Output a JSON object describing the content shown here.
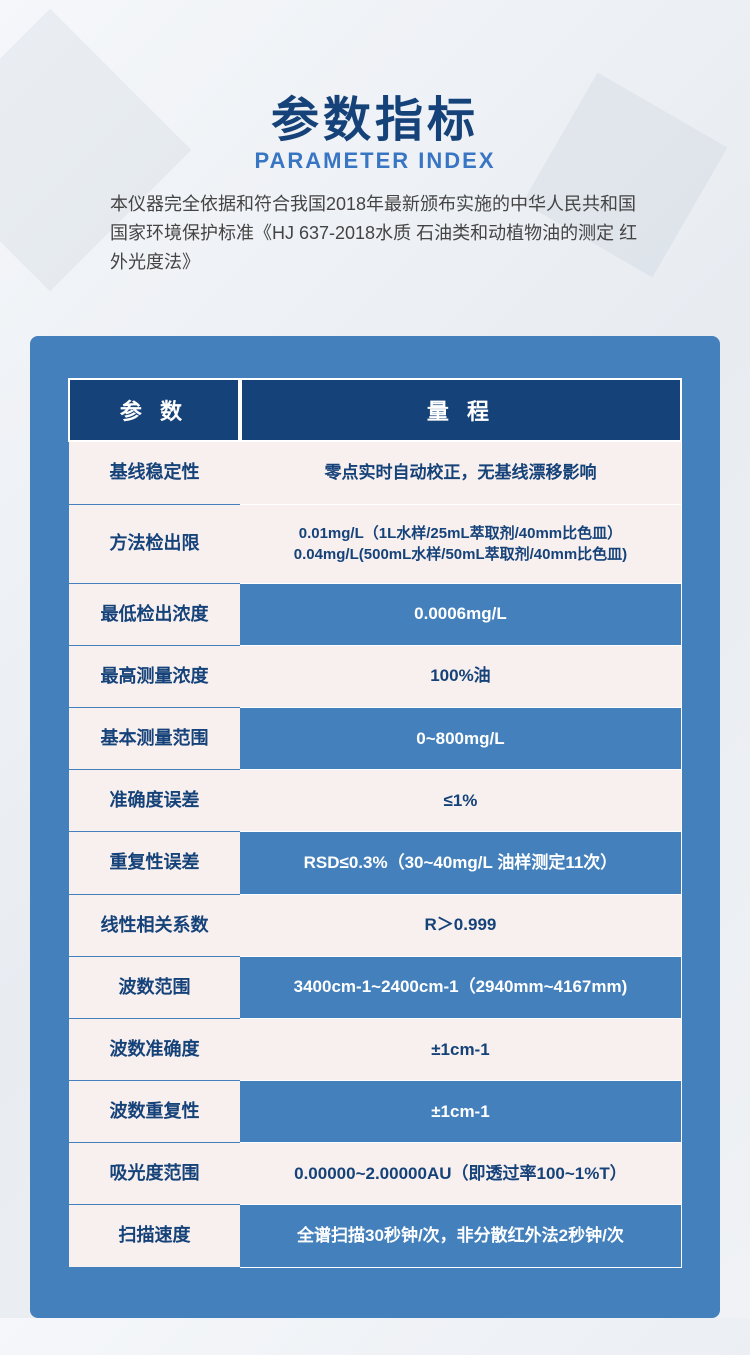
{
  "header": {
    "title_cn": "参数指标",
    "title_en": "PARAMETER INDEX",
    "description": "本仪器完全依据和符合我国2018年最新颁布实施的中华人民共和国国家环境保护标准《HJ 637-2018水质 石油类和动植物油的测定  红外光度法》"
  },
  "table": {
    "header_param": "参 数",
    "header_value": "量 程",
    "rows": [
      {
        "param": "基线稳定性",
        "value": "零点实时自动校正，无基线漂移影响",
        "style": "odd"
      },
      {
        "param": "方法检出限",
        "value": "0.01mg/L（1L水样/25mL萃取剂/40mm比色皿）\n0.04mg/L(500mL水样/50mL萃取剂/40mm比色皿)",
        "style": "odd",
        "multiline": true
      },
      {
        "param": "最低检出浓度",
        "value": "0.0006mg/L",
        "style": "even"
      },
      {
        "param": "最高测量浓度",
        "value": "100%油",
        "style": "odd"
      },
      {
        "param": "基本测量范围",
        "value": "0~800mg/L",
        "style": "even"
      },
      {
        "param": "准确度误差",
        "value": "≤1%",
        "style": "odd"
      },
      {
        "param": "重复性误差",
        "value": "RSD≤0.3%（30~40mg/L 油样测定11次）",
        "style": "even"
      },
      {
        "param": "线性相关系数",
        "value": "R＞0.999",
        "style": "odd"
      },
      {
        "param": "波数范围",
        "value": "3400cm-1~2400cm-1（2940mm~4167mm)",
        "style": "even"
      },
      {
        "param": "波数准确度",
        "value": "±1cm-1",
        "style": "odd"
      },
      {
        "param": "波数重复性",
        "value": "±1cm-1",
        "style": "even"
      },
      {
        "param": "吸光度范围",
        "value": "0.00000~2.00000AU（即透过率100~1%T）",
        "style": "odd"
      },
      {
        "param": "扫描速度",
        "value": "全谱扫描30秒钟/次，非分散红外法2秒钟/次",
        "style": "even"
      }
    ]
  },
  "colors": {
    "primary_dark": "#16427a",
    "primary_blue": "#3876c4",
    "panel_blue": "#4380bc",
    "light_bg": "#f7f0ee",
    "white": "#ffffff"
  }
}
